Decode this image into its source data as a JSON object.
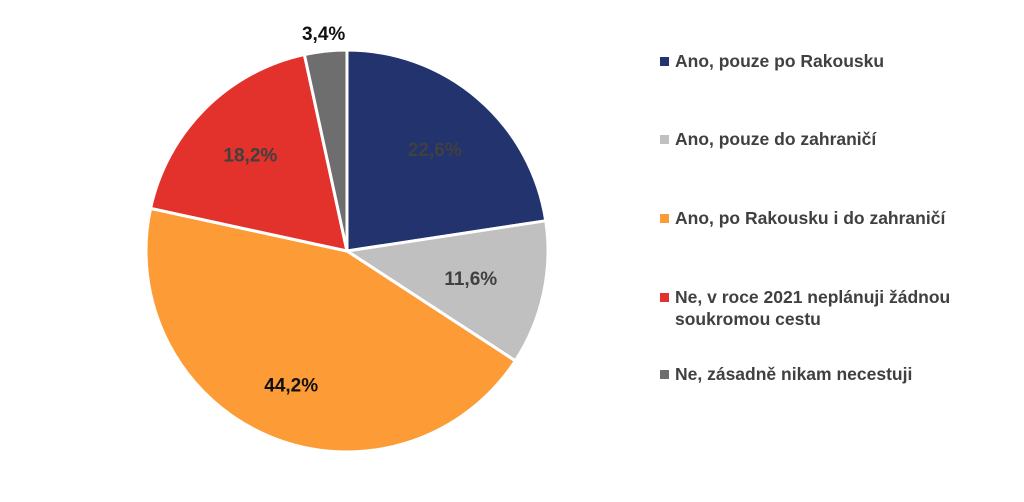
{
  "chart_data": {
    "type": "pie",
    "title": "",
    "start": "top",
    "direction": "clockwise",
    "legend_placement": "right",
    "slices": [
      {
        "label": "Ano, pouze po Rakousku",
        "value": 22.6,
        "value_label": "22,6%",
        "color": "#22336e",
        "label_color": "#404040"
      },
      {
        "label": "Ano, pouze do zahraničí",
        "value": 11.6,
        "value_label": "11,6%",
        "color": "#c0c0c0",
        "label_color": "#404040"
      },
      {
        "label": "Ano, po Rakousku i do zahraničí",
        "value": 44.2,
        "value_label": "44,2%",
        "color": "#fd9c37",
        "label_color": "#111111"
      },
      {
        "label": "Ne, v roce 2021 neplánuji žádnou soukromou cestu",
        "value": 18.2,
        "value_label": "18,2%",
        "color": "#e2322b",
        "label_color": "#404040"
      },
      {
        "label": "Ne, zásadně nikam necestuji",
        "value": 3.4,
        "value_label": "3,4%",
        "color": "#6e6e6e",
        "label_color": "#111111"
      }
    ]
  }
}
